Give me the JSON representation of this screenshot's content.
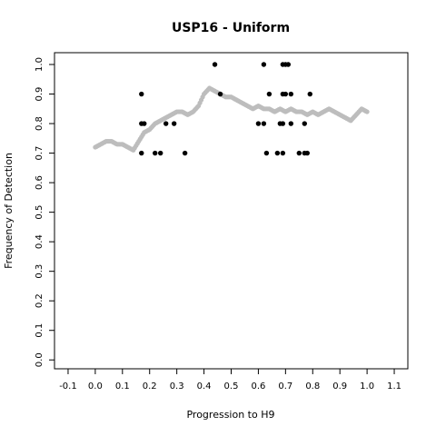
{
  "chart_data": {
    "type": "scatter",
    "title": "USP16 - Uniform",
    "xlabel": "Progression to H9",
    "ylabel": "Frequency of Detection",
    "xlim": [
      -0.15,
      1.15
    ],
    "ylim": [
      -0.03,
      1.04
    ],
    "xticks": [
      -0.1,
      0.0,
      0.1,
      0.2,
      0.3,
      0.4,
      0.5,
      0.6,
      0.7,
      0.8,
      0.9,
      1.0,
      1.1
    ],
    "xtick_labels": [
      "-0.1",
      "0.0",
      "0.1",
      "0.2",
      "0.3",
      "0.4",
      "0.5",
      "0.6",
      "0.7",
      "0.8",
      "0.9",
      "1.0",
      "1.1"
    ],
    "yticks": [
      0.0,
      0.1,
      0.2,
      0.3,
      0.4,
      0.5,
      0.6,
      0.7,
      0.8,
      0.9,
      1.0
    ],
    "ytick_labels": [
      "0.0",
      "0.1",
      "0.2",
      "0.3",
      "0.4",
      "0.5",
      "0.6",
      "0.7",
      "0.8",
      "0.9",
      "1.0"
    ],
    "grid": false,
    "legend": "none",
    "colors": {
      "observed": "#000000",
      "smoothed": "#bdbdbd"
    },
    "series": [
      {
        "role": "smoothed",
        "x": [
          0.0,
          0.02,
          0.04,
          0.06,
          0.08,
          0.1,
          0.12,
          0.14,
          0.16,
          0.18,
          0.2,
          0.22,
          0.24,
          0.26,
          0.28,
          0.3,
          0.32,
          0.34,
          0.36,
          0.38,
          0.4,
          0.42,
          0.44,
          0.46,
          0.48,
          0.5,
          0.52,
          0.54,
          0.56,
          0.58,
          0.6,
          0.62,
          0.64,
          0.66,
          0.68,
          0.7,
          0.72,
          0.74,
          0.76,
          0.78,
          0.8,
          0.82,
          0.84,
          0.86,
          0.88,
          0.9,
          0.92,
          0.94,
          0.96,
          0.98,
          1.0
        ],
        "y": [
          0.72,
          0.73,
          0.74,
          0.74,
          0.73,
          0.73,
          0.72,
          0.71,
          0.74,
          0.77,
          0.78,
          0.8,
          0.81,
          0.82,
          0.83,
          0.84,
          0.84,
          0.83,
          0.84,
          0.86,
          0.9,
          0.92,
          0.91,
          0.9,
          0.89,
          0.89,
          0.88,
          0.87,
          0.86,
          0.85,
          0.86,
          0.85,
          0.85,
          0.84,
          0.85,
          0.84,
          0.85,
          0.84,
          0.84,
          0.83,
          0.84,
          0.83,
          0.84,
          0.85,
          0.84,
          0.83,
          0.82,
          0.81,
          0.83,
          0.85,
          0.84
        ]
      },
      {
        "role": "observed",
        "x": [
          0.17,
          0.17,
          0.17,
          0.18,
          0.22,
          0.24,
          0.26,
          0.29,
          0.33,
          0.44,
          0.46,
          0.62,
          0.63,
          0.64,
          0.6,
          0.62,
          0.67,
          0.69,
          0.69,
          0.69,
          0.7,
          0.7,
          0.71,
          0.72,
          0.68,
          0.69,
          0.72,
          0.75,
          0.77,
          0.77,
          0.78,
          0.79
        ],
        "y": [
          0.9,
          0.8,
          0.7,
          0.8,
          0.7,
          0.7,
          0.8,
          0.8,
          0.7,
          1.0,
          0.9,
          1.0,
          0.7,
          0.9,
          0.8,
          0.8,
          0.7,
          0.7,
          0.8,
          1.0,
          1.0,
          0.9,
          1.0,
          0.9,
          0.8,
          0.9,
          0.8,
          0.7,
          0.7,
          0.8,
          0.7,
          0.9
        ]
      }
    ]
  }
}
